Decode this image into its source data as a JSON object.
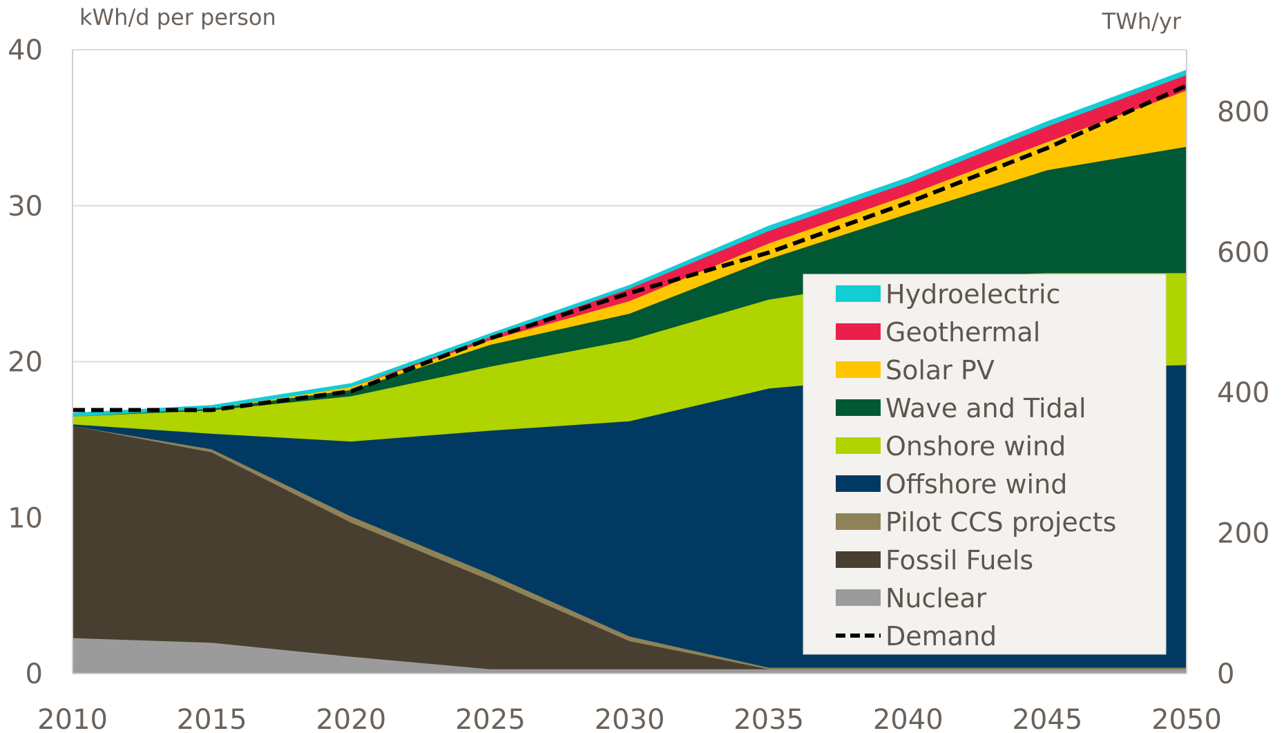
{
  "chart_data": {
    "type": "area",
    "stacked": true,
    "x": [
      2010,
      2015,
      2020,
      2025,
      2030,
      2035,
      2040,
      2045,
      2050
    ],
    "left_axis": {
      "label": "kWh/d per person",
      "ylim": [
        0,
        40
      ],
      "ticks": [
        0,
        10,
        20,
        30,
        40
      ]
    },
    "right_axis": {
      "label": "TWh/yr",
      "ylim": [
        0,
        888
      ],
      "ticks": [
        0,
        200,
        400,
        600,
        800
      ]
    },
    "grid": true,
    "legend": "right",
    "series": [
      {
        "name": "Nuclear",
        "color": "#9b9b9b",
        "values": [
          2.3,
          2.0,
          1.1,
          0.3,
          0.3,
          0.3,
          0.3,
          0.3,
          0.3
        ]
      },
      {
        "name": "Fossil Fuels",
        "color": "#483f30",
        "values": [
          13.6,
          12.2,
          8.6,
          5.7,
          1.8,
          0,
          0,
          0,
          0
        ]
      },
      {
        "name": "Pilot CCS projects",
        "color": "#8f8258",
        "values": [
          0,
          0.2,
          0.4,
          0.4,
          0.3,
          0.1,
          0.1,
          0.1,
          0.1
        ]
      },
      {
        "name": "Offshore wind",
        "color": "#003a63",
        "values": [
          0.1,
          1.0,
          4.8,
          9.2,
          13.8,
          17.9,
          18.7,
          19.2,
          19.4
        ]
      },
      {
        "name": "Onshore wind",
        "color": "#afd400",
        "values": [
          0.5,
          1.5,
          2.9,
          4.1,
          5.2,
          5.7,
          6.3,
          6.1,
          5.9
        ]
      },
      {
        "name": "Wave and Tidal",
        "color": "#005834",
        "values": [
          0,
          0.1,
          0.4,
          1.4,
          1.7,
          2.6,
          4.1,
          6.6,
          8.1
        ]
      },
      {
        "name": "Solar PV",
        "color": "#ffc600",
        "values": [
          0,
          0,
          0.2,
          0.3,
          0.8,
          1.0,
          1.2,
          1.8,
          3.6
        ]
      },
      {
        "name": "Geothermal",
        "color": "#ec1f4b",
        "values": [
          0,
          0,
          0,
          0.2,
          0.8,
          0.8,
          0.8,
          1.0,
          1.0
        ]
      },
      {
        "name": "Hydroelectric",
        "color": "#12cdd4",
        "values": [
          0.2,
          0.2,
          0.2,
          0.2,
          0.2,
          0.3,
          0.3,
          0.3,
          0.3
        ]
      }
    ],
    "demand": {
      "name": "Demand",
      "style": "dashed",
      "color": "#000000",
      "values": [
        16.9,
        16.9,
        18.1,
        21.5,
        24.4,
        27.0,
        30.2,
        33.7,
        37.7
      ]
    },
    "legend_order": [
      "Hydroelectric",
      "Geothermal",
      "Solar PV",
      "Wave and Tidal",
      "Onshore wind",
      "Offshore wind",
      "Pilot CCS projects",
      "Fossil Fuels",
      "Nuclear",
      "Demand"
    ]
  }
}
